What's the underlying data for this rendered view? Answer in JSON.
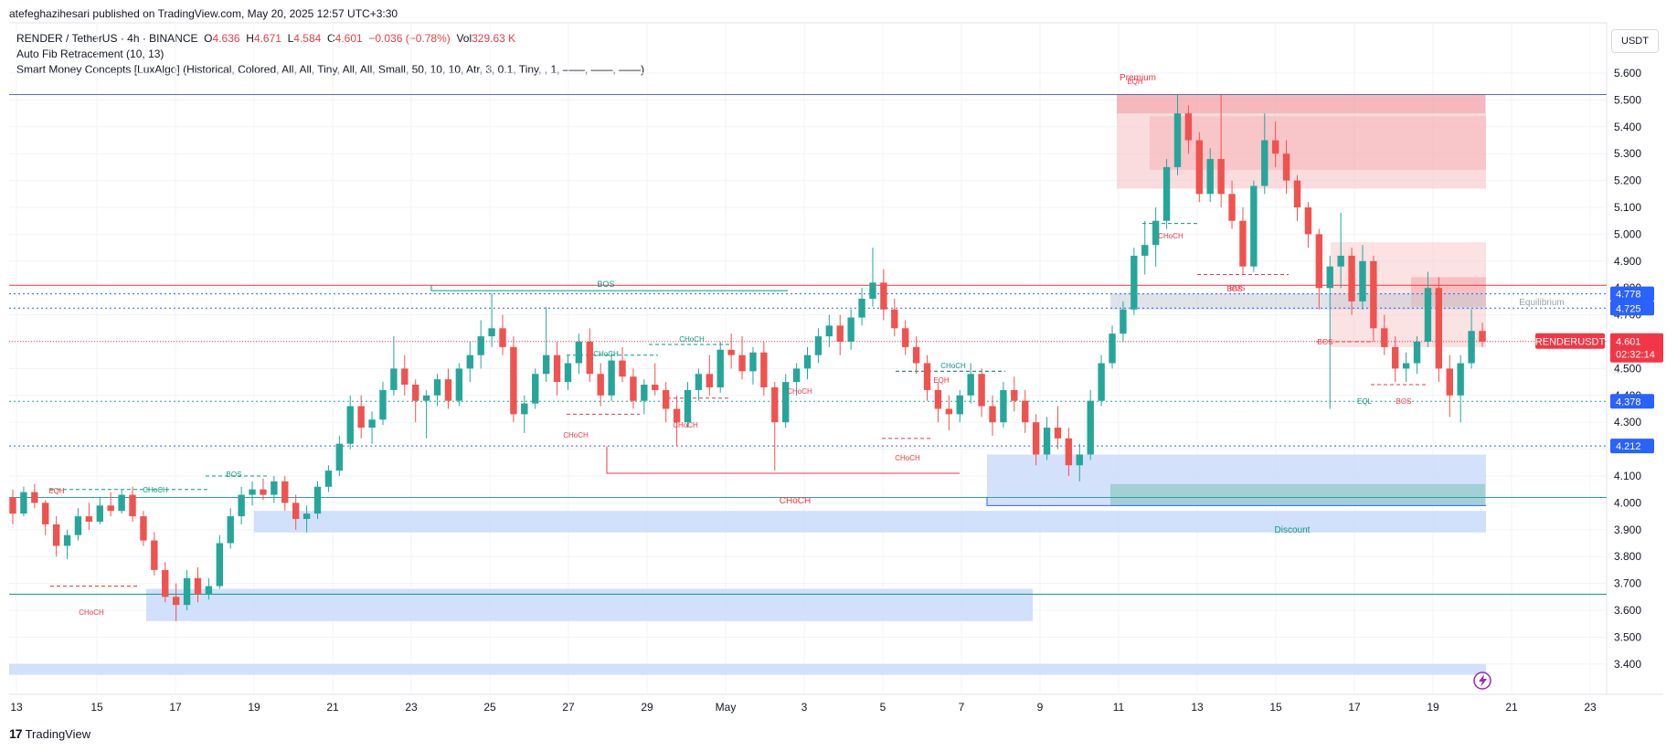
{
  "header": {
    "published": "atefeghazihesari published on TradingView.com, May 20, 2025 12:57 UTC+3:30",
    "symbol": "RENDER / TetherUS · 4h · BINANCE",
    "ohlc": {
      "o_label": "O",
      "o": "4.636",
      "h_label": "H",
      "h": "4.671",
      "l_label": "L",
      "l": "4.584",
      "c_label": "C",
      "c": "4.601",
      "change": "−0.036 (−0.78%)",
      "vol_label": "Vol",
      "vol": "329.63 K"
    },
    "indicator1": "Auto Fib Retracement (10, 13)",
    "indicator2": "Smart Money Concepts [LuxAlgo] (Historical, Colored, All, All, Tiny, All, All, Small, 50, 10, 10, Atr, 3, 0.1, Tiny, , 1, ——, ——, ——)"
  },
  "currency": "USDT",
  "footer": {
    "logo_mark": "17",
    "logo_text": "TradingView"
  },
  "colors": {
    "up": "#26a69a",
    "down": "#ef5350",
    "blue_label": "#2962ff",
    "price_label": "#f23645",
    "premium": "#f7a8ad",
    "discount": "#b3cdf7",
    "smc_green": "#089981",
    "smc_red": "#f23645"
  },
  "icons": {
    "alert": "lightning-icon"
  },
  "chart_data": {
    "type": "candlestick",
    "timeframe": "4h",
    "ylim": [
      3.35,
      5.65
    ],
    "y_ticks": [
      "5.600",
      "5.500",
      "5.400",
      "5.300",
      "5.200",
      "5.100",
      "5.000",
      "4.900",
      "4.800",
      "4.700",
      "4.600",
      "4.500",
      "4.400",
      "4.300",
      "4.200",
      "4.100",
      "4.000",
      "3.900",
      "3.800",
      "3.700",
      "3.600",
      "3.500",
      "3.400"
    ],
    "x_ticks": [
      "13",
      "15",
      "17",
      "19",
      "21",
      "23",
      "25",
      "27",
      "29",
      "May",
      "3",
      "5",
      "7",
      "9",
      "11",
      "13",
      "15",
      "17",
      "19",
      "21",
      "23"
    ],
    "price_labels": [
      {
        "value": 4.778,
        "text": "4.778",
        "color": "#2962ff"
      },
      {
        "value": 4.725,
        "text": "4.725",
        "color": "#2962ff"
      },
      {
        "value": 4.378,
        "text": "4.378",
        "color": "#2962ff"
      },
      {
        "value": 4.212,
        "text": "4.212",
        "color": "#2962ff"
      },
      {
        "value": 4.601,
        "text": "4.601",
        "color": "#f23645"
      }
    ],
    "last_price": {
      "symbol": "RENDERUSDT",
      "value": 4.601,
      "countdown": "02:32:14"
    },
    "horizontal_levels": [
      {
        "value": 5.52,
        "style": "solid",
        "color": "#5b6cbf"
      },
      {
        "value": 4.81,
        "style": "solid",
        "color": "#f23645"
      },
      {
        "value": 4.778,
        "style": "dotted",
        "color": "#2962ff"
      },
      {
        "value": 4.725,
        "style": "dotted",
        "color": "#2962ff"
      },
      {
        "value": 4.378,
        "style": "dotted",
        "color": "#26a69a"
      },
      {
        "value": 4.212,
        "style": "dotted",
        "color": "#2962ff"
      },
      {
        "value": 4.02,
        "style": "solid",
        "color": "#26a69a"
      },
      {
        "value": 3.66,
        "style": "solid",
        "color": "#089981"
      }
    ],
    "zones": [
      {
        "kind": "premium",
        "label": "Premium",
        "top": 5.52,
        "bottom": 5.17
      },
      {
        "kind": "equilibrium",
        "label": "Equilibrium",
        "top": 4.78,
        "bottom": 4.72
      },
      {
        "kind": "discount",
        "label": "Discount",
        "top": 4.18,
        "bottom": 3.99
      }
    ],
    "annotations": [
      "EQH",
      "Premium",
      "BOS",
      "CHoCH",
      "CHoCH",
      "CHoCH",
      "BOS",
      "EQH",
      "CHoCH",
      "CHoCH",
      "CHoCH",
      "CHoCH",
      "CHoCH",
      "EQH",
      "CHoCH",
      "CHoCH",
      "BOS",
      "BOS",
      "EQL",
      "BOS",
      "Equilibrium",
      "Discount",
      "CHoCH",
      "BOS"
    ],
    "candles": [
      [
        4.02,
        4.05,
        3.92,
        3.96
      ],
      [
        3.96,
        4.06,
        3.95,
        4.04
      ],
      [
        4.04,
        4.07,
        3.98,
        4.0
      ],
      [
        4.0,
        4.01,
        3.88,
        3.92
      ],
      [
        3.92,
        3.95,
        3.8,
        3.84
      ],
      [
        3.84,
        3.9,
        3.79,
        3.88
      ],
      [
        3.88,
        3.98,
        3.86,
        3.95
      ],
      [
        3.95,
        4.0,
        3.9,
        3.93
      ],
      [
        3.93,
        4.02,
        3.92,
        3.99
      ],
      [
        3.99,
        4.04,
        3.95,
        3.97
      ],
      [
        3.97,
        4.05,
        3.96,
        4.03
      ],
      [
        4.03,
        4.06,
        3.93,
        3.95
      ],
      [
        3.95,
        3.97,
        3.84,
        3.86
      ],
      [
        3.86,
        3.89,
        3.73,
        3.75
      ],
      [
        3.75,
        3.78,
        3.63,
        3.65
      ],
      [
        3.65,
        3.7,
        3.56,
        3.62
      ],
      [
        3.62,
        3.75,
        3.6,
        3.72
      ],
      [
        3.72,
        3.76,
        3.63,
        3.66
      ],
      [
        3.66,
        3.72,
        3.64,
        3.69
      ],
      [
        3.69,
        3.88,
        3.68,
        3.85
      ],
      [
        3.85,
        3.98,
        3.83,
        3.95
      ],
      [
        3.95,
        4.06,
        3.92,
        4.03
      ],
      [
        4.03,
        4.08,
        3.99,
        4.05
      ],
      [
        4.05,
        4.09,
        4.01,
        4.03
      ],
      [
        4.03,
        4.1,
        4.0,
        4.08
      ],
      [
        4.08,
        4.1,
        3.97,
        4.0
      ],
      [
        4.0,
        4.03,
        3.9,
        3.94
      ],
      [
        3.94,
        3.99,
        3.89,
        3.96
      ],
      [
        3.96,
        4.08,
        3.94,
        4.06
      ],
      [
        4.06,
        4.14,
        4.04,
        4.12
      ],
      [
        4.12,
        4.25,
        4.1,
        4.22
      ],
      [
        4.22,
        4.4,
        4.2,
        4.36
      ],
      [
        4.36,
        4.4,
        4.24,
        4.28
      ],
      [
        4.28,
        4.34,
        4.22,
        4.31
      ],
      [
        4.31,
        4.45,
        4.29,
        4.42
      ],
      [
        4.42,
        4.62,
        4.4,
        4.5
      ],
      [
        4.5,
        4.55,
        4.4,
        4.44
      ],
      [
        4.44,
        4.46,
        4.3,
        4.38
      ],
      [
        4.38,
        4.42,
        4.24,
        4.4
      ],
      [
        4.4,
        4.48,
        4.36,
        4.46
      ],
      [
        4.46,
        4.5,
        4.35,
        4.38
      ],
      [
        4.38,
        4.52,
        4.36,
        4.5
      ],
      [
        4.5,
        4.6,
        4.45,
        4.55
      ],
      [
        4.55,
        4.68,
        4.5,
        4.62
      ],
      [
        4.62,
        4.78,
        4.58,
        4.65
      ],
      [
        4.65,
        4.7,
        4.55,
        4.58
      ],
      [
        4.58,
        4.62,
        4.3,
        4.33
      ],
      [
        4.33,
        4.4,
        4.26,
        4.37
      ],
      [
        4.37,
        4.5,
        4.35,
        4.48
      ],
      [
        4.48,
        4.73,
        4.45,
        4.55
      ],
      [
        4.55,
        4.6,
        4.4,
        4.45
      ],
      [
        4.45,
        4.55,
        4.42,
        4.52
      ],
      [
        4.52,
        4.63,
        4.48,
        4.6
      ],
      [
        4.6,
        4.65,
        4.45,
        4.48
      ],
      [
        4.48,
        4.52,
        4.36,
        4.4
      ],
      [
        4.4,
        4.56,
        4.38,
        4.53
      ],
      [
        4.53,
        4.58,
        4.45,
        4.47
      ],
      [
        4.47,
        4.5,
        4.35,
        4.38
      ],
      [
        4.38,
        4.46,
        4.33,
        4.44
      ],
      [
        4.44,
        4.52,
        4.4,
        4.42
      ],
      [
        4.42,
        4.45,
        4.3,
        4.35
      ],
      [
        4.35,
        4.4,
        4.21,
        4.3
      ],
      [
        4.3,
        4.45,
        4.28,
        4.42
      ],
      [
        4.42,
        4.5,
        4.38,
        4.48
      ],
      [
        4.48,
        4.55,
        4.4,
        4.43
      ],
      [
        4.43,
        4.6,
        4.41,
        4.57
      ],
      [
        4.57,
        4.63,
        4.5,
        4.55
      ],
      [
        4.55,
        4.62,
        4.46,
        4.49
      ],
      [
        4.49,
        4.58,
        4.44,
        4.56
      ],
      [
        4.56,
        4.6,
        4.4,
        4.43
      ],
      [
        4.43,
        4.45,
        4.12,
        4.3
      ],
      [
        4.3,
        4.48,
        4.28,
        4.45
      ],
      [
        4.45,
        4.52,
        4.4,
        4.5
      ],
      [
        4.5,
        4.58,
        4.46,
        4.55
      ],
      [
        4.55,
        4.65,
        4.52,
        4.62
      ],
      [
        4.62,
        4.7,
        4.58,
        4.66
      ],
      [
        4.66,
        4.7,
        4.55,
        4.6
      ],
      [
        4.6,
        4.72,
        4.57,
        4.69
      ],
      [
        4.69,
        4.8,
        4.66,
        4.76
      ],
      [
        4.76,
        4.95,
        4.73,
        4.82
      ],
      [
        4.82,
        4.87,
        4.68,
        4.72
      ],
      [
        4.72,
        4.76,
        4.62,
        4.65
      ],
      [
        4.65,
        4.68,
        4.55,
        4.58
      ],
      [
        4.58,
        4.62,
        4.48,
        4.52
      ],
      [
        4.52,
        4.55,
        4.38,
        4.42
      ],
      [
        4.42,
        4.45,
        4.3,
        4.35
      ],
      [
        4.35,
        4.4,
        4.27,
        4.33
      ],
      [
        4.33,
        4.42,
        4.3,
        4.4
      ],
      [
        4.4,
        4.52,
        4.37,
        4.48
      ],
      [
        4.48,
        4.5,
        4.32,
        4.36
      ],
      [
        4.36,
        4.4,
        4.25,
        4.3
      ],
      [
        4.3,
        4.45,
        4.28,
        4.42
      ],
      [
        4.42,
        4.47,
        4.34,
        4.38
      ],
      [
        4.38,
        4.42,
        4.26,
        4.3
      ],
      [
        4.3,
        4.33,
        4.14,
        4.18
      ],
      [
        4.18,
        4.32,
        4.16,
        4.28
      ],
      [
        4.28,
        4.36,
        4.2,
        4.24
      ],
      [
        4.24,
        4.28,
        4.1,
        4.14
      ],
      [
        4.14,
        4.22,
        4.08,
        4.18
      ],
      [
        4.18,
        4.42,
        4.16,
        4.38
      ],
      [
        4.38,
        4.55,
        4.36,
        4.52
      ],
      [
        4.52,
        4.66,
        4.5,
        4.63
      ],
      [
        4.63,
        4.75,
        4.6,
        4.72
      ],
      [
        4.72,
        4.95,
        4.7,
        4.92
      ],
      [
        4.92,
        5.05,
        4.85,
        4.96
      ],
      [
        4.96,
        5.1,
        4.88,
        5.05
      ],
      [
        5.05,
        5.28,
        5.02,
        5.25
      ],
      [
        5.25,
        5.52,
        5.22,
        5.45
      ],
      [
        5.45,
        5.48,
        5.3,
        5.35
      ],
      [
        5.35,
        5.38,
        5.12,
        5.15
      ],
      [
        5.15,
        5.32,
        5.12,
        5.28
      ],
      [
        5.28,
        5.52,
        5.1,
        5.15
      ],
      [
        5.15,
        5.2,
        5.02,
        5.05
      ],
      [
        5.05,
        5.1,
        4.85,
        4.88
      ],
      [
        4.88,
        5.2,
        4.86,
        5.18
      ],
      [
        5.18,
        5.45,
        5.15,
        5.35
      ],
      [
        5.35,
        5.42,
        5.25,
        5.3
      ],
      [
        5.3,
        5.35,
        5.15,
        5.2
      ],
      [
        5.2,
        5.22,
        5.05,
        5.1
      ],
      [
        5.1,
        5.12,
        4.95,
        5.0
      ],
      [
        5.0,
        5.02,
        4.72,
        4.8
      ],
      [
        4.8,
        4.92,
        4.35,
        4.88
      ],
      [
        4.88,
        5.08,
        4.8,
        4.92
      ],
      [
        4.92,
        4.95,
        4.7,
        4.75
      ],
      [
        4.75,
        4.96,
        4.72,
        4.9
      ],
      [
        4.9,
        4.92,
        4.6,
        4.65
      ],
      [
        4.65,
        4.7,
        4.55,
        4.58
      ],
      [
        4.58,
        4.62,
        4.45,
        4.5
      ],
      [
        4.5,
        4.56,
        4.45,
        4.52
      ],
      [
        4.52,
        4.62,
        4.48,
        4.6
      ],
      [
        4.6,
        4.86,
        4.58,
        4.8
      ],
      [
        4.8,
        4.84,
        4.45,
        4.5
      ],
      [
        4.5,
        4.55,
        4.32,
        4.4
      ],
      [
        4.4,
        4.55,
        4.3,
        4.52
      ],
      [
        4.52,
        4.72,
        4.5,
        4.64
      ],
      [
        4.64,
        4.67,
        4.58,
        4.6
      ]
    ]
  }
}
